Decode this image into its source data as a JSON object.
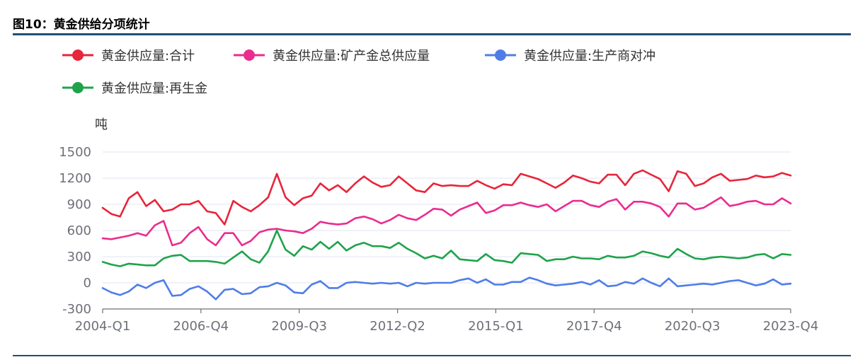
{
  "figure": {
    "title": "图10：黄金供给分项统计"
  },
  "chart_data": {
    "type": "line",
    "ylabel": "吨",
    "ylim": [
      -300,
      1500
    ],
    "yticks": [
      -300,
      0,
      300,
      600,
      900,
      1200,
      1500
    ],
    "x_range": [
      "2004-Q1",
      "2023-Q4"
    ],
    "xticks": [
      "2004-Q1",
      "2006-Q4",
      "2009-Q3",
      "2012-Q2",
      "2015-Q1",
      "2017-Q4",
      "2020-Q3",
      "2023-Q4"
    ],
    "legend_position": "top-left",
    "grid": true,
    "series": [
      {
        "name": "黄金供应量:合计",
        "color": "#e8253a",
        "values": [
          860,
          790,
          760,
          970,
          1040,
          880,
          950,
          820,
          840,
          900,
          900,
          940,
          820,
          800,
          670,
          940,
          870,
          820,
          890,
          980,
          1250,
          980,
          890,
          970,
          1000,
          1140,
          1060,
          1120,
          1040,
          1140,
          1220,
          1150,
          1100,
          1120,
          1220,
          1140,
          1060,
          1040,
          1140,
          1110,
          1120,
          1110,
          1110,
          1170,
          1120,
          1080,
          1130,
          1120,
          1250,
          1220,
          1190,
          1140,
          1090,
          1150,
          1230,
          1200,
          1160,
          1140,
          1240,
          1240,
          1120,
          1250,
          1290,
          1240,
          1190,
          1050,
          1280,
          1250,
          1110,
          1140,
          1210,
          1250,
          1170,
          1180,
          1190,
          1230,
          1210,
          1220,
          1260,
          1230
        ]
      },
      {
        "name": "黄金供应量:矿产金总供应量",
        "color": "#ea2c8f",
        "values": [
          510,
          500,
          520,
          540,
          570,
          540,
          660,
          710,
          430,
          460,
          570,
          640,
          500,
          430,
          570,
          570,
          430,
          480,
          580,
          610,
          620,
          600,
          590,
          570,
          620,
          700,
          680,
          670,
          680,
          740,
          760,
          730,
          680,
          720,
          780,
          740,
          720,
          780,
          850,
          840,
          770,
          840,
          880,
          920,
          800,
          830,
          890,
          890,
          920,
          890,
          870,
          900,
          820,
          880,
          940,
          940,
          890,
          870,
          930,
          960,
          840,
          930,
          930,
          910,
          870,
          760,
          910,
          910,
          840,
          860,
          920,
          980,
          880,
          900,
          930,
          940,
          900,
          900,
          970,
          910
        ]
      },
      {
        "name": "黄金供应量:生产商对冲",
        "color": "#4f7de8",
        "values": [
          -60,
          -110,
          -140,
          -100,
          -20,
          -60,
          0,
          30,
          -150,
          -140,
          -70,
          -40,
          -100,
          -190,
          -80,
          -70,
          -130,
          -120,
          -50,
          -40,
          0,
          -30,
          -110,
          -120,
          -20,
          20,
          -60,
          -60,
          0,
          10,
          0,
          -10,
          0,
          -10,
          0,
          -40,
          0,
          -10,
          0,
          0,
          0,
          30,
          50,
          0,
          40,
          -20,
          -20,
          10,
          10,
          60,
          30,
          -10,
          -30,
          -20,
          -10,
          10,
          -20,
          30,
          -40,
          -30,
          10,
          -10,
          50,
          0,
          -40,
          50,
          -40,
          -30,
          -20,
          -10,
          -20,
          0,
          20,
          30,
          0,
          -30,
          -10,
          40,
          -20,
          -10
        ]
      },
      {
        "name": "黄金供应量:再生金",
        "color": "#1fa34a",
        "values": [
          240,
          210,
          190,
          220,
          210,
          200,
          200,
          280,
          310,
          320,
          250,
          250,
          250,
          240,
          220,
          290,
          360,
          270,
          230,
          360,
          600,
          380,
          310,
          420,
          380,
          470,
          390,
          470,
          370,
          430,
          460,
          420,
          420,
          400,
          460,
          390,
          340,
          280,
          310,
          280,
          370,
          270,
          260,
          250,
          330,
          260,
          250,
          230,
          340,
          330,
          320,
          250,
          270,
          270,
          300,
          280,
          280,
          270,
          310,
          290,
          290,
          310,
          360,
          340,
          310,
          290,
          390,
          330,
          280,
          270,
          290,
          300,
          290,
          280,
          290,
          320,
          330,
          280,
          330,
          320
        ]
      }
    ]
  }
}
